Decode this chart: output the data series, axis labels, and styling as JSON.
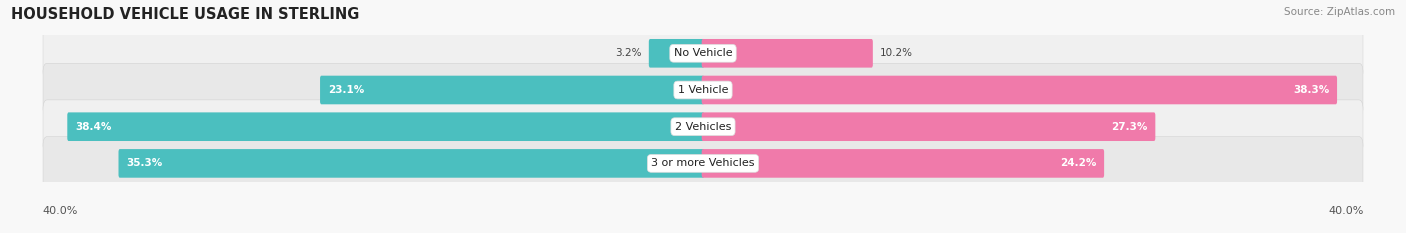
{
  "title": "HOUSEHOLD VEHICLE USAGE IN STERLING",
  "source": "Source: ZipAtlas.com",
  "categories": [
    "No Vehicle",
    "1 Vehicle",
    "2 Vehicles",
    "3 or more Vehicles"
  ],
  "owner_values": [
    3.2,
    23.1,
    38.4,
    35.3
  ],
  "renter_values": [
    10.2,
    38.3,
    27.3,
    24.2
  ],
  "owner_color": "#4bbfbf",
  "renter_color": "#f07aaa",
  "row_bg_color_odd": "#f0f0f0",
  "row_bg_color_even": "#e8e8e8",
  "max_val": 40.0,
  "x_axis_left_label": "40.0%",
  "x_axis_right_label": "40.0%",
  "title_fontsize": 10.5,
  "source_fontsize": 7.5,
  "bar_height": 0.62,
  "figsize": [
    14.06,
    2.33
  ],
  "dpi": 100
}
